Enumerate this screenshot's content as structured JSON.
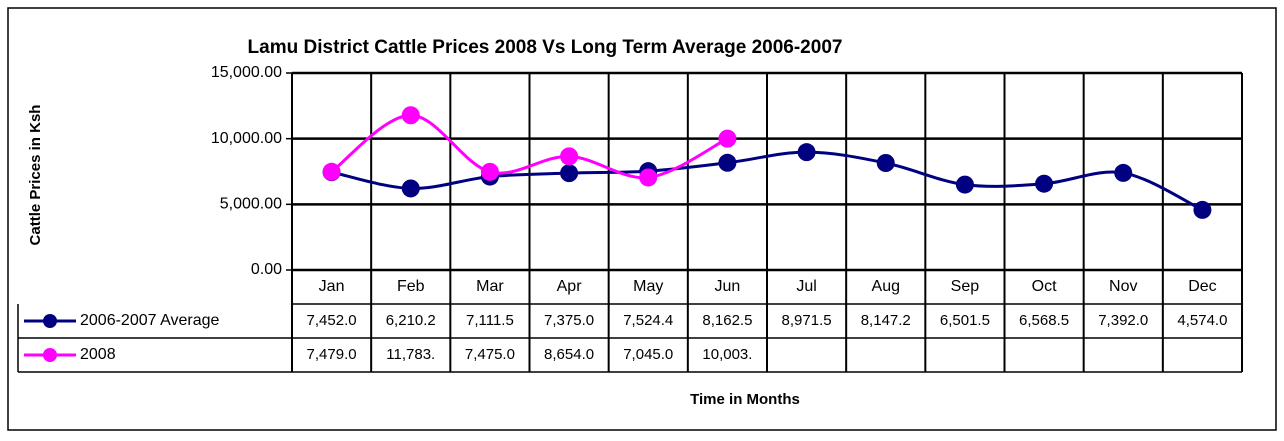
{
  "chart_data": {
    "type": "line",
    "title": "Lamu District Cattle Prices 2008 Vs Long Term Average 2006-2007",
    "y_label": "Cattle Prices in Ksh",
    "x_label": "Time in Months",
    "categories": [
      "Jan",
      "Feb",
      "Mar",
      "Apr",
      "May",
      "Jun",
      "Jul",
      "Aug",
      "Sep",
      "Oct",
      "Nov",
      "Dec"
    ],
    "series": [
      {
        "name": "2006-2007 Average",
        "color": "#000080",
        "values": [
          7452.0,
          6210.2,
          7111.5,
          7375.0,
          7524.4,
          8162.5,
          8971.5,
          8147.2,
          6501.5,
          6568.5,
          7392.0,
          4574.0
        ],
        "value_labels": [
          "7,452.0",
          "6,210.2",
          "7,111.5",
          "7,375.0",
          "7,524.4",
          "8,162.5",
          "8,971.5",
          "8,147.2",
          "6,501.5",
          "6,568.5",
          "7,392.0",
          "4,574.0"
        ]
      },
      {
        "name": "2008",
        "color": "#ff00ff",
        "values": [
          7479.0,
          11783,
          7475.0,
          8654.0,
          7045.0,
          10003,
          null,
          null,
          null,
          null,
          null,
          null
        ],
        "value_labels": [
          "7,479.0",
          "11,783.",
          "7,475.0",
          "8,654.0",
          "7,045.0",
          "10,003.",
          null,
          null,
          null,
          null,
          null,
          null
        ]
      }
    ],
    "ylim": [
      0,
      15000
    ],
    "yticks": [
      {
        "value": 0,
        "label": "0.00"
      },
      {
        "value": 5000,
        "label": "5,000.00"
      },
      {
        "value": 10000,
        "label": "10,000.00"
      },
      {
        "value": 15000,
        "label": "15,000.00"
      }
    ],
    "grid": true
  }
}
